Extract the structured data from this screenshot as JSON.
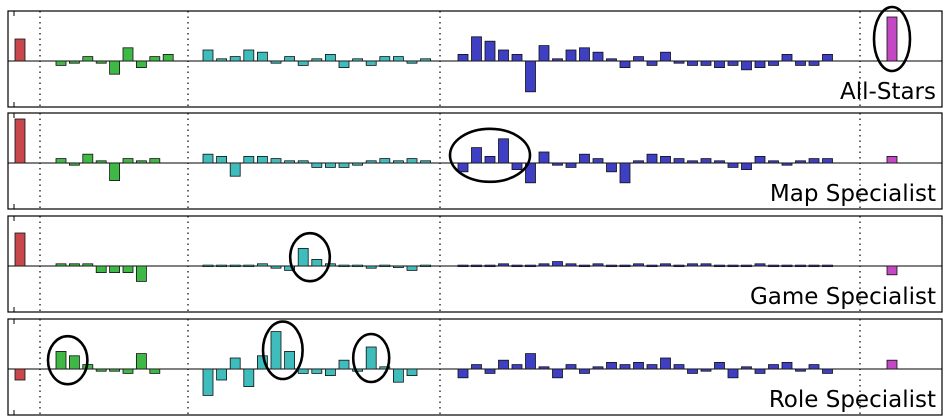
{
  "chart_data": [
    {
      "type": "bar",
      "label": "All-Stars",
      "colors": {
        "red": "#c8474a",
        "green": "#3fb845",
        "cyan": "#3fbdbd",
        "blue": "#3e3fc3",
        "magenta": "#c447c4"
      },
      "groups": [
        {
          "color": "red",
          "values": [
            0.5
          ]
        },
        {
          "color": "green",
          "values": [
            -0.1,
            -0.05,
            0.1,
            -0.05,
            -0.3,
            0.3,
            -0.15,
            0.1,
            0.15
          ]
        },
        {
          "color": "cyan",
          "values": [
            0.25,
            0.05,
            0.1,
            0.25,
            0.2,
            -0.05,
            0.1,
            -0.1,
            0.05,
            0.15,
            -0.15,
            0.05,
            -0.1,
            0.1,
            0.1,
            -0.05,
            0.05
          ]
        },
        {
          "color": "blue",
          "values": [
            0.15,
            0.55,
            0.45,
            0.25,
            0.15,
            -0.7,
            0.35,
            0.05,
            0.25,
            0.3,
            0.2,
            0.05,
            -0.15,
            0.1,
            -0.1,
            0.2,
            -0.05,
            -0.1,
            -0.1,
            -0.15,
            -0.1,
            -0.2,
            -0.15,
            -0.1,
            0.15,
            -0.1,
            -0.1,
            0.15
          ]
        },
        {
          "color": "magenta",
          "values": [
            1.0
          ]
        }
      ],
      "circles": [
        {
          "group": "magenta",
          "from": 0,
          "to": 0
        }
      ]
    },
    {
      "type": "bar",
      "label": "Map Specialist",
      "colors": {
        "red": "#c8474a",
        "green": "#3fb845",
        "cyan": "#3fbdbd",
        "blue": "#3e3fc3",
        "magenta": "#c447c4"
      },
      "groups": [
        {
          "color": "red",
          "values": [
            1.0
          ]
        },
        {
          "color": "green",
          "values": [
            0.1,
            -0.05,
            0.2,
            0.05,
            -0.4,
            0.1,
            0.05,
            0.1
          ]
        },
        {
          "color": "cyan",
          "values": [
            0.2,
            0.15,
            -0.3,
            0.15,
            0.15,
            0.1,
            0.05,
            0.05,
            -0.1,
            -0.1,
            -0.1,
            -0.05,
            0.05,
            0.1,
            0.05,
            0.1,
            0.05
          ]
        },
        {
          "color": "blue",
          "values": [
            -0.2,
            0.35,
            0.15,
            0.55,
            -0.15,
            -0.45,
            0.25,
            -0.05,
            -0.1,
            0.2,
            0.1,
            -0.2,
            -0.45,
            0.05,
            0.2,
            0.15,
            0.1,
            0.05,
            0.1,
            0.05,
            -0.1,
            -0.15,
            0.15,
            0.05,
            -0.05,
            0.05,
            0.1,
            0.1
          ]
        },
        {
          "color": "magenta",
          "values": [
            0.15
          ]
        }
      ],
      "circles": [
        {
          "group": "blue",
          "from": 0,
          "to": 4
        }
      ]
    },
    {
      "type": "bar",
      "label": "Game Specialist",
      "colors": {
        "red": "#c8474a",
        "green": "#3fb845",
        "cyan": "#3fbdbd",
        "blue": "#3e3fc3",
        "magenta": "#c447c4"
      },
      "groups": [
        {
          "color": "red",
          "values": [
            0.75
          ]
        },
        {
          "color": "green",
          "values": [
            0.05,
            0.05,
            0.05,
            -0.15,
            -0.15,
            -0.15,
            -0.35
          ]
        },
        {
          "color": "cyan",
          "values": [
            0.02,
            0.02,
            0.02,
            0.02,
            0.05,
            -0.05,
            -0.1,
            0.4,
            0.15,
            0.05,
            0.02,
            0.02,
            -0.05,
            0.02,
            -0.02,
            -0.1,
            0.02
          ]
        },
        {
          "color": "blue",
          "values": [
            0.02,
            0.02,
            0.02,
            0.05,
            0.02,
            0.02,
            0.05,
            0.1,
            0.05,
            0.02,
            0.05,
            0.02,
            0.02,
            0.05,
            0.02,
            0.05,
            0.02,
            0.05,
            0.05,
            0.02,
            0.02,
            0.02,
            0.05,
            0.02,
            0.02,
            0.02,
            0.02,
            0.02
          ]
        },
        {
          "color": "magenta",
          "values": [
            -0.2
          ]
        }
      ],
      "circles": [
        {
          "group": "cyan",
          "from": 7,
          "to": 8
        }
      ]
    },
    {
      "type": "bar",
      "label": "Role Specialist",
      "colors": {
        "red": "#c8474a",
        "green": "#3fb845",
        "cyan": "#3fbdbd",
        "blue": "#3e3fc3",
        "magenta": "#c447c4"
      },
      "groups": [
        {
          "color": "red",
          "values": [
            -0.25
          ]
        },
        {
          "color": "green",
          "values": [
            0.4,
            0.3,
            0.1,
            -0.05,
            -0.05,
            -0.1,
            0.35,
            -0.1
          ]
        },
        {
          "color": "cyan",
          "values": [
            -0.6,
            -0.25,
            0.25,
            -0.4,
            0.3,
            0.85,
            0.4,
            -0.1,
            -0.1,
            -0.15,
            0.2,
            -0.05,
            0.5,
            0.05,
            -0.3,
            -0.15
          ]
        },
        {
          "color": "blue",
          "values": [
            -0.2,
            0.1,
            -0.1,
            0.2,
            0.1,
            0.35,
            0.05,
            -0.2,
            0.1,
            -0.1,
            0.05,
            0.15,
            0.1,
            0.15,
            0.1,
            0.25,
            0.1,
            -0.1,
            -0.05,
            0.15,
            -0.2,
            0.05,
            -0.1,
            0.1,
            0.15,
            -0.05,
            0.1,
            -0.1
          ]
        },
        {
          "color": "magenta",
          "values": [
            0.2
          ]
        }
      ],
      "circles": [
        {
          "group": "green",
          "from": 0,
          "to": 1
        },
        {
          "group": "cyan",
          "from": 5,
          "to": 6
        },
        {
          "group": "cyan",
          "from": 12,
          "to": 12
        }
      ]
    }
  ]
}
